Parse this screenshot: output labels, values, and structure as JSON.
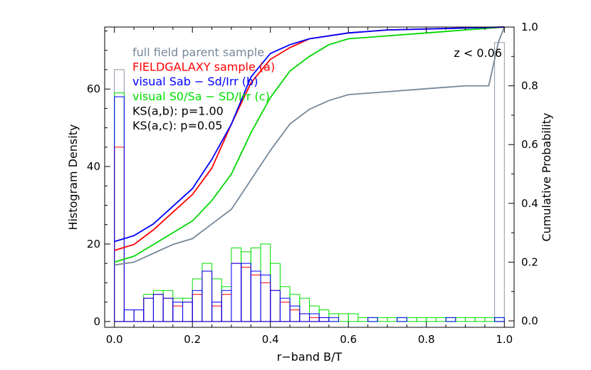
{
  "chart_data": {
    "type": "bar",
    "xlabel": "r−band B/T",
    "ylabel_left": "Histogram Density",
    "ylabel_right": "Cumulative Probability",
    "annotation": "z < 0.06",
    "xlim": [
      -0.025,
      1.025
    ],
    "ylim_left": [
      -1.5,
      76
    ],
    "ylim_right": [
      0,
      1.0
    ],
    "x_ticks": [
      "0.0",
      "0.2",
      "0.4",
      "0.6",
      "0.8",
      "1.0"
    ],
    "x_tick_values": [
      0.0,
      0.2,
      0.4,
      0.6,
      0.8,
      1.0
    ],
    "y_ticks_left": [
      "0",
      "20",
      "40",
      "60"
    ],
    "y_tick_values_left": [
      0,
      20,
      40,
      60
    ],
    "y_ticks_right": [
      "0.0",
      "0.2",
      "0.4",
      "0.6",
      "0.8",
      "1.0"
    ],
    "y_tick_values_right": [
      0.0,
      0.2,
      0.4,
      0.6,
      0.8,
      1.0
    ],
    "legend_position": "top-left",
    "legend": [
      {
        "text": "full field parent sample",
        "color": "#778899"
      },
      {
        "text": "FIELDGALAXY sample (a)",
        "color": "#ff0000"
      },
      {
        "text": "visual Sab − Sd/Irr (b)",
        "color": "#0000ff"
      },
      {
        "text": "visual S0/Sa − SD/Irr (c)",
        "color": "#00e000"
      },
      {
        "text": "KS(a,b): p=1.00",
        "color": "#000000"
      },
      {
        "text": "KS(a,c): p=0.05",
        "color": "#000000"
      }
    ],
    "histograms": {
      "bin_edges": [
        0.0,
        0.025,
        0.05,
        0.075,
        0.1,
        0.125,
        0.15,
        0.175,
        0.2,
        0.225,
        0.25,
        0.275,
        0.3,
        0.325,
        0.35,
        0.375,
        0.4,
        0.425,
        0.45,
        0.475,
        0.5,
        0.525,
        0.55,
        0.575,
        0.6,
        0.625,
        0.65,
        0.675,
        0.7,
        0.725,
        0.75,
        0.775,
        0.8,
        0.825,
        0.85,
        0.875,
        0.9,
        0.925,
        0.95,
        0.975,
        1.0
      ],
      "series": [
        {
          "name": "full field parent sample",
          "color": "#8a96a3",
          "values": [
            65,
            0,
            0,
            0,
            0,
            0,
            0,
            0,
            0,
            0,
            0,
            0,
            0,
            0,
            0,
            0,
            0,
            0,
            0,
            0,
            0,
            0,
            0,
            0,
            0,
            0,
            0,
            0,
            0,
            0,
            0,
            0,
            0,
            0,
            0,
            0,
            0,
            0,
            0,
            72
          ]
        },
        {
          "name": "visual S0/Sa − SD/Irr (c)",
          "color": "#00e000",
          "values": [
            59,
            3,
            3,
            7,
            8,
            8,
            6,
            6,
            11,
            15,
            11,
            9,
            19,
            18,
            19,
            20,
            15,
            9,
            7,
            6,
            4,
            3,
            2,
            2,
            2,
            1,
            1,
            1,
            1,
            1,
            1,
            1,
            1,
            1,
            1,
            1,
            1,
            1,
            1,
            1
          ]
        },
        {
          "name": "FIELDGALAXY sample (a)",
          "color": "#ff0000",
          "values": [
            45,
            3,
            3,
            6,
            7,
            6,
            4,
            5,
            7,
            13,
            4,
            7,
            15,
            14,
            12,
            10,
            8,
            5,
            3,
            2,
            1,
            1,
            0,
            0,
            0,
            0,
            0,
            0,
            0,
            0,
            0,
            0,
            0,
            0,
            0,
            0,
            0,
            0,
            0,
            0
          ]
        },
        {
          "name": "visual Sab − Sd/Irr (b)",
          "color": "#0000ff",
          "values": [
            58,
            3,
            3,
            6,
            7,
            6,
            5,
            5,
            8,
            13,
            5,
            8,
            15,
            15,
            13,
            12,
            8,
            6,
            4,
            2,
            2,
            1,
            1,
            0,
            0,
            0,
            1,
            0,
            0,
            1,
            0,
            0,
            0,
            0,
            1,
            0,
            0,
            0,
            0,
            1
          ]
        }
      ]
    },
    "cumulative": {
      "series": [
        {
          "name": "full field parent sample",
          "color": "#778899",
          "points": [
            [
              0,
              0.19
            ],
            [
              0.05,
              0.2
            ],
            [
              0.1,
              0.23
            ],
            [
              0.15,
              0.26
            ],
            [
              0.2,
              0.28
            ],
            [
              0.25,
              0.33
            ],
            [
              0.3,
              0.38
            ],
            [
              0.35,
              0.48
            ],
            [
              0.4,
              0.58
            ],
            [
              0.45,
              0.67
            ],
            [
              0.5,
              0.72
            ],
            [
              0.55,
              0.75
            ],
            [
              0.6,
              0.77
            ],
            [
              0.7,
              0.78
            ],
            [
              0.8,
              0.79
            ],
            [
              0.9,
              0.8
            ],
            [
              0.96,
              0.8
            ],
            [
              0.985,
              0.95
            ],
            [
              1.0,
              1.0
            ]
          ]
        },
        {
          "name": "visual S0/Sa − SD/Irr (c)",
          "color": "#00d800",
          "points": [
            [
              0,
              0.2
            ],
            [
              0.05,
              0.22
            ],
            [
              0.1,
              0.26
            ],
            [
              0.15,
              0.3
            ],
            [
              0.2,
              0.34
            ],
            [
              0.25,
              0.41
            ],
            [
              0.3,
              0.5
            ],
            [
              0.35,
              0.64
            ],
            [
              0.4,
              0.76
            ],
            [
              0.45,
              0.85
            ],
            [
              0.5,
              0.9
            ],
            [
              0.55,
              0.94
            ],
            [
              0.6,
              0.96
            ],
            [
              0.7,
              0.97
            ],
            [
              0.8,
              0.98
            ],
            [
              0.9,
              0.99
            ],
            [
              1.0,
              1.0
            ]
          ]
        },
        {
          "name": "FIELDGALAXY sample (a)",
          "color": "#ff0000",
          "points": [
            [
              0,
              0.24
            ],
            [
              0.05,
              0.26
            ],
            [
              0.1,
              0.31
            ],
            [
              0.15,
              0.37
            ],
            [
              0.2,
              0.43
            ],
            [
              0.25,
              0.52
            ],
            [
              0.3,
              0.67
            ],
            [
              0.35,
              0.81
            ],
            [
              0.4,
              0.89
            ],
            [
              0.45,
              0.93
            ],
            [
              0.5,
              0.96
            ],
            [
              0.6,
              0.98
            ],
            [
              0.7,
              0.99
            ],
            [
              1.0,
              1.0
            ]
          ]
        },
        {
          "name": "visual Sab − Sd/Irr (b)",
          "color": "#0000ff",
          "points": [
            [
              0,
              0.27
            ],
            [
              0.05,
              0.29
            ],
            [
              0.1,
              0.33
            ],
            [
              0.15,
              0.39
            ],
            [
              0.2,
              0.45
            ],
            [
              0.25,
              0.55
            ],
            [
              0.3,
              0.67
            ],
            [
              0.35,
              0.83
            ],
            [
              0.4,
              0.91
            ],
            [
              0.45,
              0.94
            ],
            [
              0.5,
              0.96
            ],
            [
              0.6,
              0.98
            ],
            [
              0.7,
              0.99
            ],
            [
              1.0,
              1.0
            ]
          ]
        }
      ]
    }
  }
}
